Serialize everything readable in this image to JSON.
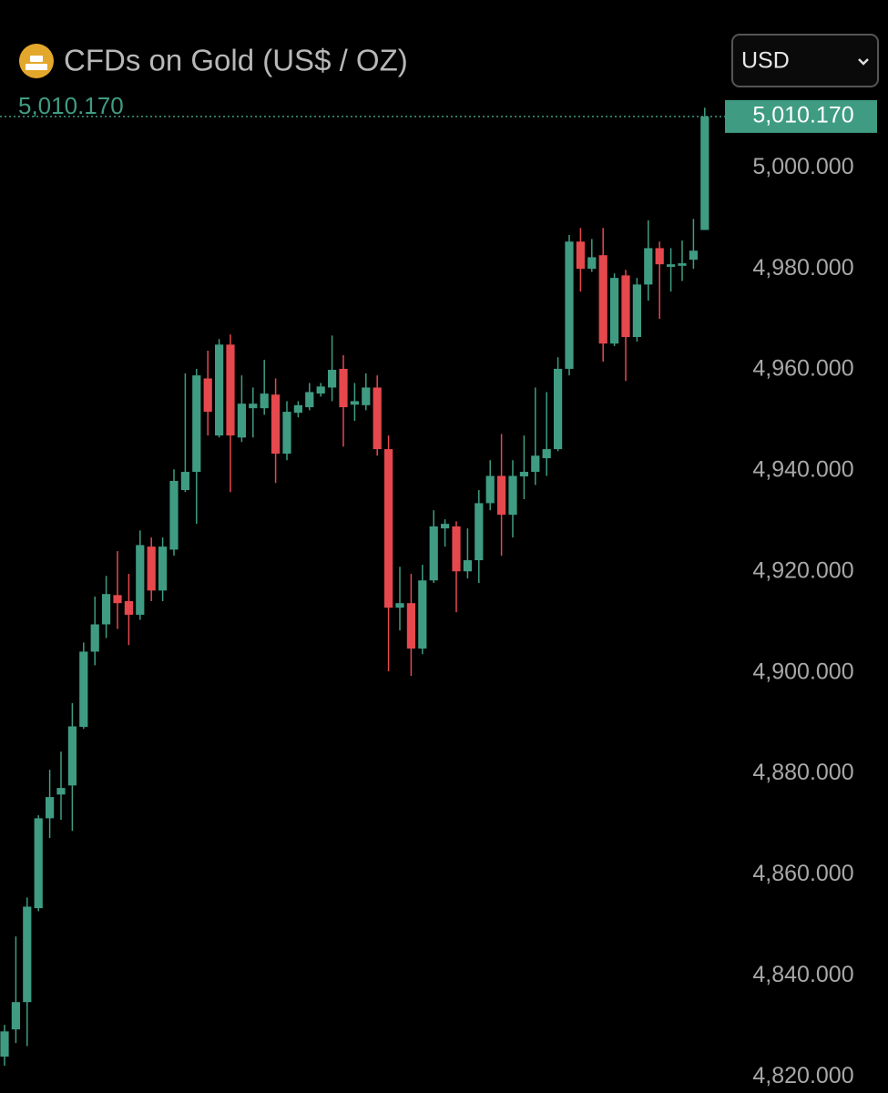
{
  "chart_data": {
    "type": "candlestick",
    "title": "CFDs on Gold (US$ / OZ)",
    "currency": "USD",
    "last_price": {
      "value": 5010.17,
      "label": "5,010.170"
    },
    "up_color": "#3f9c83",
    "down_color": "#e5484d",
    "open": [
      4824.0,
      4829.4,
      4834.8,
      4853.4,
      4871.2,
      4875.9,
      4877.7,
      4889.3,
      4904.2,
      4909.6,
      4915.4,
      4914.2,
      4911.5,
      4925.0,
      4916.3,
      4924.4,
      4936.2,
      4939.8,
      4958.3,
      4947.0,
      4965.0,
      4946.6,
      4952.4,
      4952.4,
      4955.1,
      4943.4,
      4951.5,
      4952.6,
      4955.3,
      4956.5,
      4960.2,
      4953.1,
      4953.0,
      4956.5,
      4944.3,
      4912.9,
      4913.8,
      4904.8,
      4918.3,
      4928.6,
      4929.0,
      4920.1,
      4922.3,
      4933.6,
      4939.0,
      4931.3,
      4938.9,
      4939.8,
      4942.5,
      4944.3,
      4960.2,
      4985.4,
      4980.0,
      4982.7,
      4965.2,
      4978.7,
      4966.5,
      4976.9,
      4984.1,
      4980.4,
      4980.6,
      4981.8,
      4987.7
    ],
    "high": [
      4830.3,
      4847.8,
      4855.5,
      4871.8,
      4880.8,
      4884.4,
      4894.0,
      4906.0,
      4915.1,
      4919.2,
      4924.1,
      4919.6,
      4928.2,
      4926.8,
      4926.8,
      4940.3,
      4959.3,
      4960.2,
      4963.8,
      4966.1,
      4967.0,
      4958.9,
      4956.5,
      4962.0,
      4958.3,
      4953.8,
      4953.8,
      4957.4,
      4957.4,
      4966.8,
      4962.9,
      4957.4,
      4959.3,
      4958.9,
      4947.0,
      4921.0,
      4919.6,
      4921.4,
      4932.2,
      4930.4,
      4930.0,
      4928.6,
      4936.2,
      4942.1,
      4947.3,
      4942.1,
      4947.0,
      4956.5,
      4955.6,
      4962.5,
      4986.7,
      4988.1,
      4985.9,
      4988.1,
      4979.1,
      4979.8,
      4978.2,
      4989.6,
      4985.4,
      4984.1,
      4985.6,
      4989.9,
      5011.9
    ],
    "low": [
      4822.2,
      4826.7,
      4826.1,
      4852.8,
      4867.3,
      4870.9,
      4868.7,
      4888.9,
      4901.5,
      4906.9,
      4908.7,
      4905.5,
      4910.5,
      4914.2,
      4914.2,
      4923.2,
      4935.8,
      4929.5,
      4947.0,
      4946.6,
      4935.8,
      4945.7,
      4946.6,
      4951.1,
      4937.6,
      4942.1,
      4950.6,
      4952.0,
      4954.7,
      4953.8,
      4944.8,
      4949.9,
      4952.0,
      4943.0,
      4900.3,
      4908.4,
      4899.4,
      4903.7,
      4917.8,
      4925.0,
      4912.0,
      4918.7,
      4917.8,
      4932.2,
      4923.2,
      4926.8,
      4934.4,
      4937.2,
      4939.0,
      4943.9,
      4958.9,
      4975.5,
      4979.4,
      4961.6,
      4964.7,
      4957.8,
      4965.6,
      4973.7,
      4970.1,
      4975.5,
      4977.6,
      4980.0,
      4987.7
    ],
    "close": [
      4829.0,
      4834.8,
      4853.7,
      4871.2,
      4875.4,
      4877.2,
      4889.4,
      4904.2,
      4909.6,
      4915.6,
      4913.8,
      4911.5,
      4925.3,
      4916.3,
      4925.0,
      4938.0,
      4939.8,
      4958.9,
      4951.7,
      4965.0,
      4947.0,
      4953.3,
      4953.3,
      4955.3,
      4943.4,
      4951.7,
      4953.0,
      4955.6,
      4956.7,
      4960.0,
      4952.6,
      4953.8,
      4956.5,
      4944.3,
      4912.9,
      4913.8,
      4904.8,
      4918.3,
      4929.0,
      4929.5,
      4920.1,
      4922.3,
      4933.6,
      4939.0,
      4931.3,
      4939.0,
      4939.8,
      4943.0,
      4944.3,
      4960.2,
      4985.4,
      4980.0,
      4982.3,
      4965.2,
      4978.2,
      4966.5,
      4976.9,
      4984.1,
      4980.9,
      4980.9,
      4981.1,
      4983.6,
      5010.17
    ],
    "ylim": [
      4816.8,
      5015.2
    ],
    "yticks": [
      {
        "value": 4820,
        "label": "4,820.000"
      },
      {
        "value": 4840,
        "label": "4,840.000"
      },
      {
        "value": 4860,
        "label": "4,860.000"
      },
      {
        "value": 4880,
        "label": "4,880.000"
      },
      {
        "value": 4900,
        "label": "4,900.000"
      },
      {
        "value": 4920,
        "label": "4,920.000"
      },
      {
        "value": 4940,
        "label": "4,940.000"
      },
      {
        "value": 4960,
        "label": "4,960.000"
      },
      {
        "value": 4980,
        "label": "4,980.000"
      },
      {
        "value": 5000,
        "label": "5,000.000"
      }
    ]
  }
}
